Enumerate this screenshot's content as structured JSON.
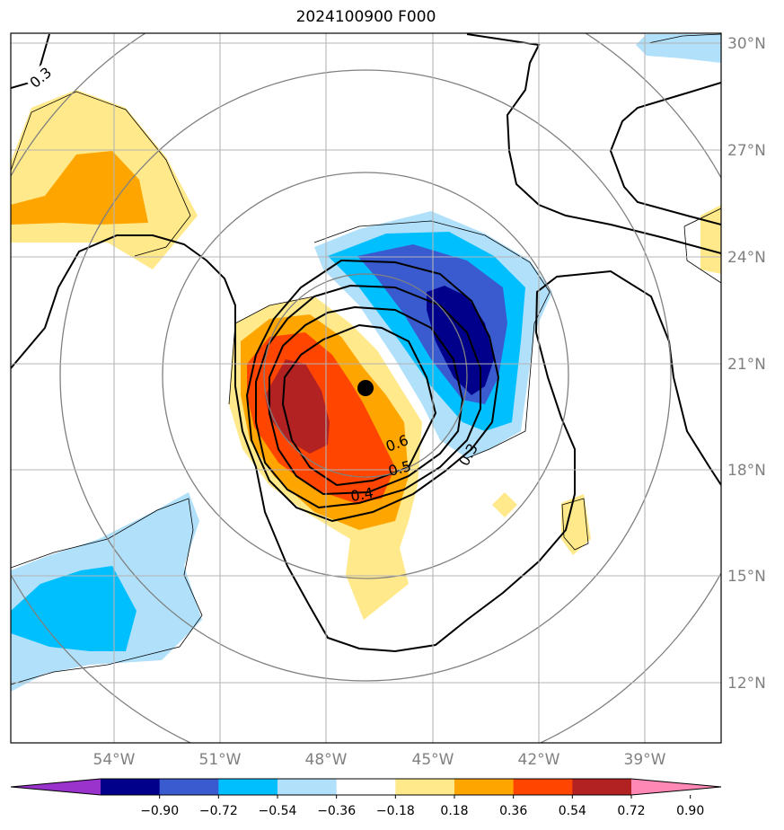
{
  "title": "2024100900 F000",
  "lat_labels": [
    "30°N",
    "27°N",
    "24°N",
    "21°N",
    "18°N",
    "15°N",
    "12°N"
  ],
  "lon_labels": [
    "54°W",
    "51°W",
    "48°W",
    "45°W",
    "42°W",
    "39°W"
  ],
  "colorbar": {
    "labels": [
      "−0.90",
      "−0.72",
      "−0.54",
      "−0.36",
      "−0.18",
      "0.18",
      "0.36",
      "0.54",
      "0.72",
      "0.90"
    ],
    "colors": [
      "#9933cc",
      "#00008b",
      "#3a5bd0",
      "#00bfff",
      "#b0e0fa",
      "#ffffff",
      "#ffe98a",
      "#ffa500",
      "#ff4500",
      "#b22222",
      "#ff88b4"
    ]
  },
  "contour_labels": [
    "0.3",
    "0.6",
    "0.5",
    "0.4",
    "0.3"
  ],
  "storm_center_icon": "filled-circle-marker"
}
